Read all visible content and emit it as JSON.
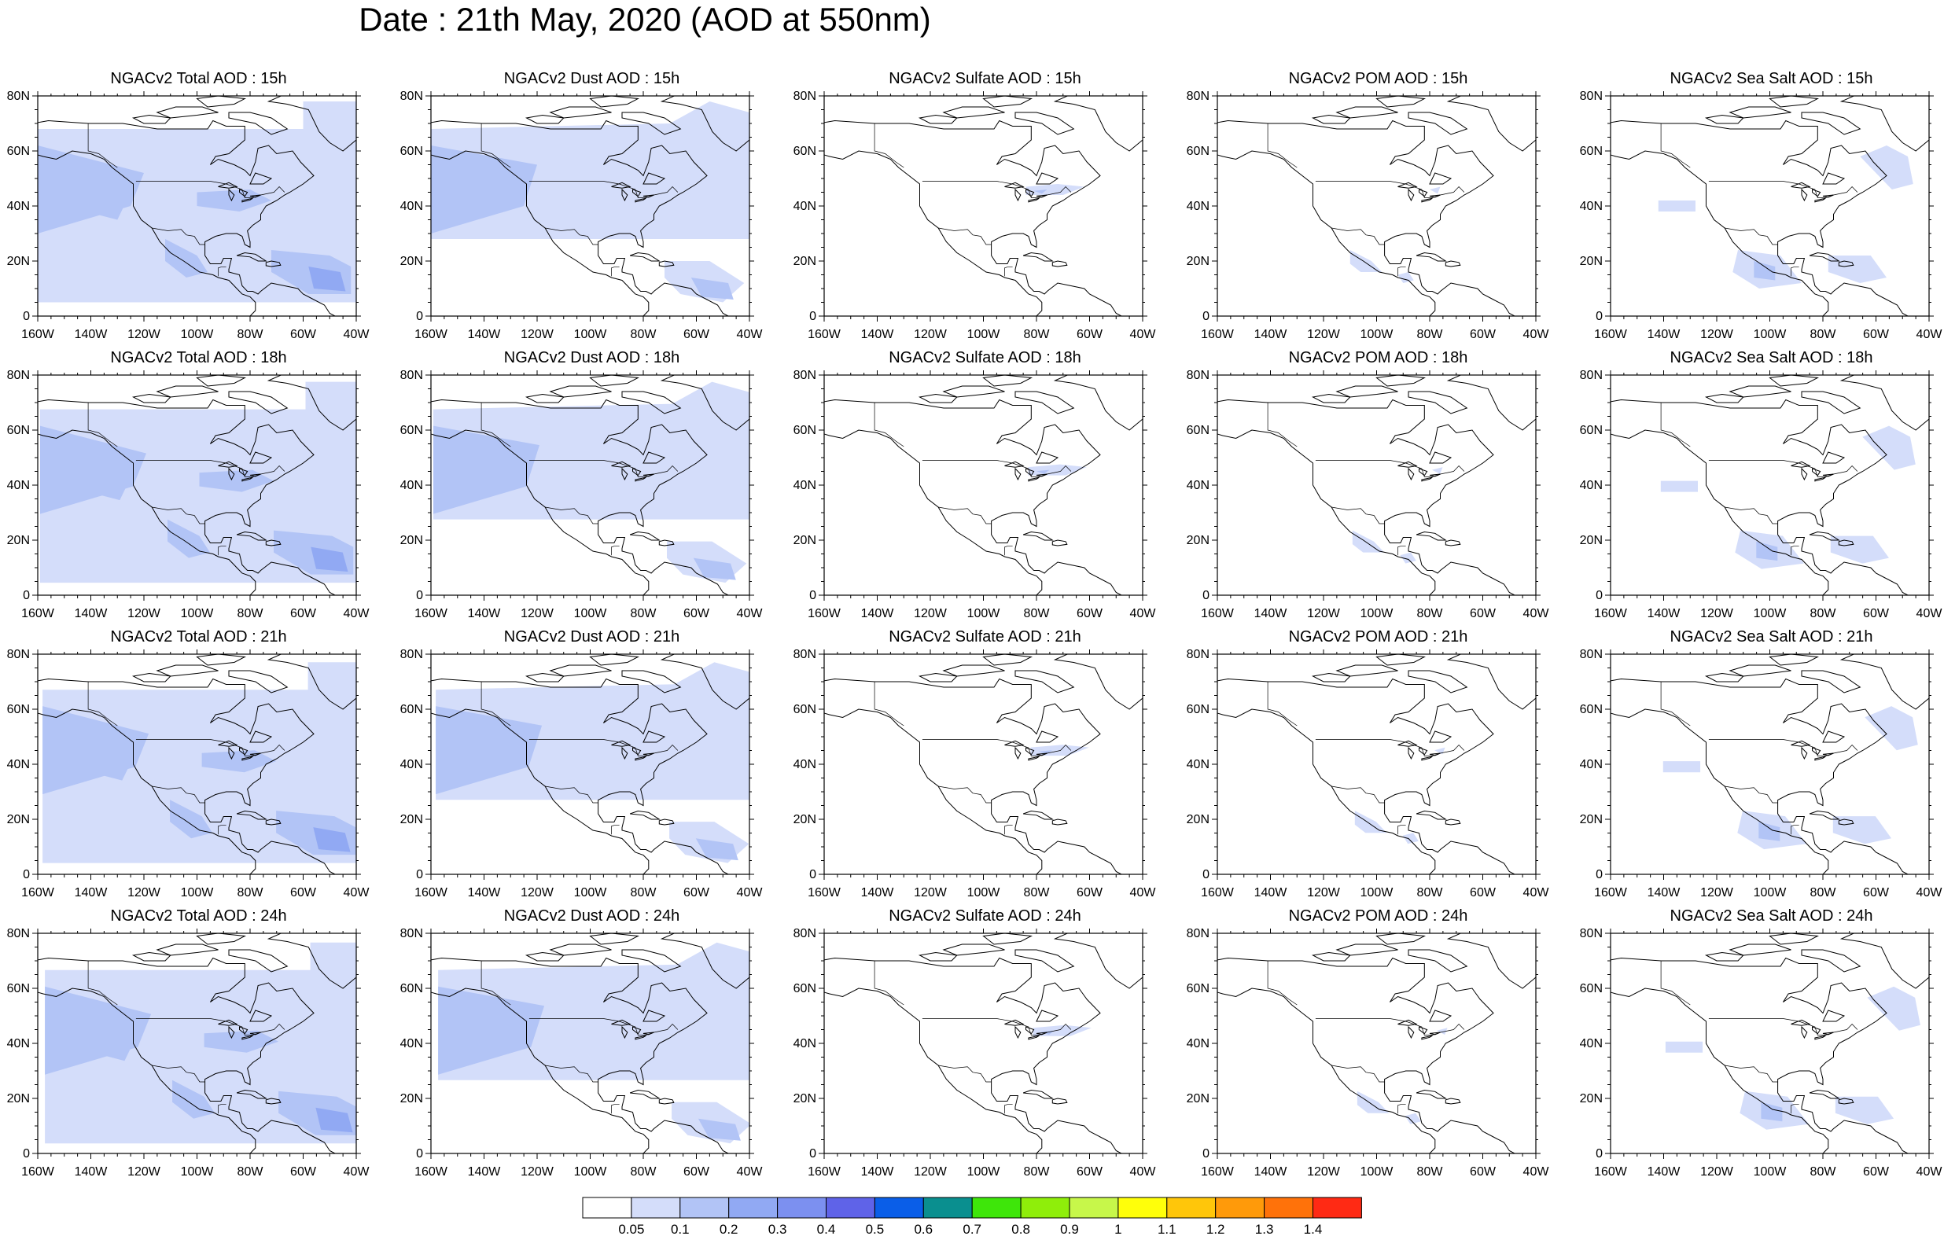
{
  "title": "Date : 21th May, 2020 (AOD at 550nm)",
  "map": {
    "lon_ticks": [
      "160W",
      "140W",
      "120W",
      "100W",
      "80W",
      "60W",
      "40W"
    ],
    "lat_ticks": [
      "80N",
      "60N",
      "40N",
      "20N",
      "0"
    ],
    "lon_range": [
      -160,
      -40
    ],
    "lat_range": [
      0,
      80
    ]
  },
  "panels": [
    {
      "title": "NGACv2 Total AOD : 15h",
      "species": "total",
      "hour": 15
    },
    {
      "title": "NGACv2 Dust AOD : 15h",
      "species": "dust",
      "hour": 15
    },
    {
      "title": "NGACv2 Sulfate AOD : 15h",
      "species": "sulfate",
      "hour": 15
    },
    {
      "title": "NGACv2 POM AOD : 15h",
      "species": "pom",
      "hour": 15
    },
    {
      "title": "NGACv2 Sea Salt AOD : 15h",
      "species": "seasalt",
      "hour": 15
    },
    {
      "title": "NGACv2 Total AOD : 18h",
      "species": "total",
      "hour": 18
    },
    {
      "title": "NGACv2 Dust AOD : 18h",
      "species": "dust",
      "hour": 18
    },
    {
      "title": "NGACv2 Sulfate AOD : 18h",
      "species": "sulfate",
      "hour": 18
    },
    {
      "title": "NGACv2 POM AOD : 18h",
      "species": "pom",
      "hour": 18
    },
    {
      "title": "NGACv2 Sea Salt AOD : 18h",
      "species": "seasalt",
      "hour": 18
    },
    {
      "title": "NGACv2 Total AOD : 21h",
      "species": "total",
      "hour": 21
    },
    {
      "title": "NGACv2 Dust AOD : 21h",
      "species": "dust",
      "hour": 21
    },
    {
      "title": "NGACv2 Sulfate AOD : 21h",
      "species": "sulfate",
      "hour": 21
    },
    {
      "title": "NGACv2 POM AOD : 21h",
      "species": "pom",
      "hour": 21
    },
    {
      "title": "NGACv2 Sea Salt AOD : 21h",
      "species": "seasalt",
      "hour": 21
    },
    {
      "title": "NGACv2 Total AOD : 24h",
      "species": "total",
      "hour": 24
    },
    {
      "title": "NGACv2 Dust AOD : 24h",
      "species": "dust",
      "hour": 24
    },
    {
      "title": "NGACv2 Sulfate AOD : 24h",
      "species": "sulfate",
      "hour": 24
    },
    {
      "title": "NGACv2 POM AOD : 24h",
      "species": "pom",
      "hour": 24
    },
    {
      "title": "NGACv2 Sea Salt  AOD : 24h",
      "species": "seasalt",
      "hour": 24
    }
  ],
  "colorbar": {
    "labels": [
      "0.05",
      "0.1",
      "0.2",
      "0.3",
      "0.4",
      "0.5",
      "0.6",
      "0.7",
      "0.8",
      "0.9",
      "1",
      "1.1",
      "1.2",
      "1.3",
      "1.4"
    ],
    "colors": [
      "#ffffff",
      "#d4ddfa",
      "#b2c4f6",
      "#91a9f3",
      "#7c90f0",
      "#5f63e8",
      "#0a5ee8",
      "#0a8f8f",
      "#3ee60a",
      "#8fee0a",
      "#c7f74a",
      "#ffff0a",
      "#ffc60a",
      "#ff9a0a",
      "#ff720a",
      "#ff2a14"
    ]
  }
}
